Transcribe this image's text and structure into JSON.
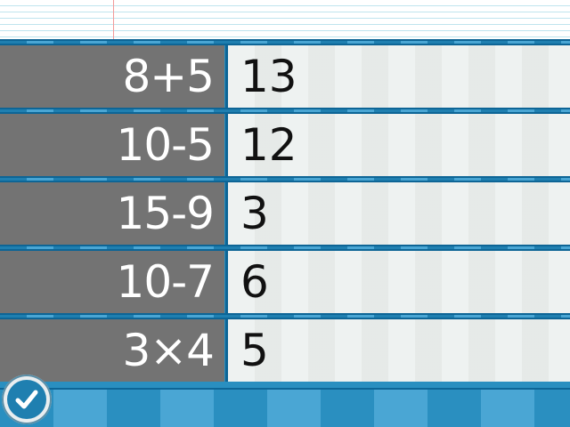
{
  "rows": [
    {
      "question": "8+5",
      "answer": "13"
    },
    {
      "question": "10-5",
      "answer": "12"
    },
    {
      "question": "15-9",
      "answer": "3"
    },
    {
      "question": "10-7",
      "answer": "6"
    },
    {
      "question": "3×4",
      "answer": "5"
    }
  ],
  "check_button": {
    "icon": "checkmark-icon"
  },
  "colors": {
    "question_bg": "#737373",
    "answer_bg": "#eef2f1",
    "strip": "#1f7fb0",
    "strip_light": "#4aa6d4",
    "paper_line": "#bfe4ee",
    "margin_line": "#f29a9a"
  }
}
